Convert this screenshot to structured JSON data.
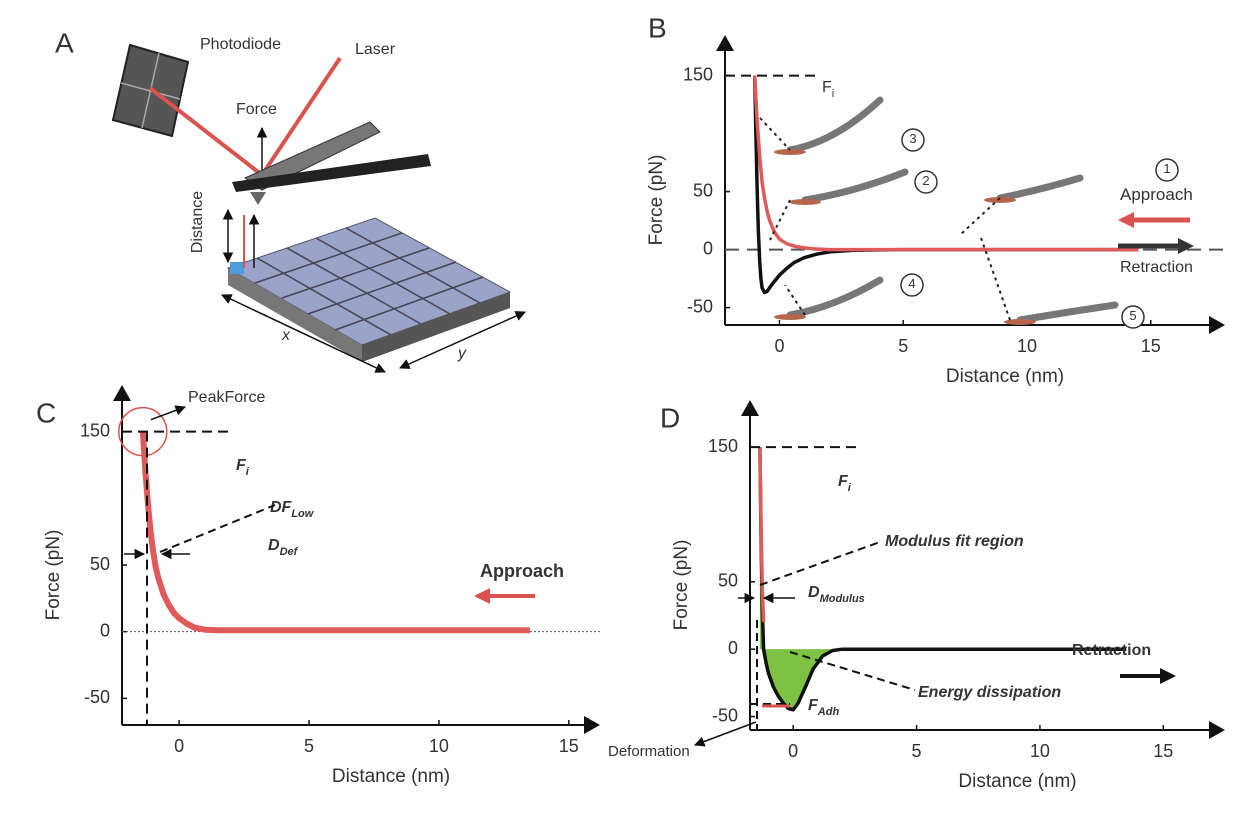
{
  "panel_labels": [
    "A",
    "B",
    "C",
    "D"
  ],
  "diagram": {
    "labels": [
      "Photodiode",
      "Laser",
      "Force",
      "Distance",
      "x",
      "y"
    ]
  },
  "chart_data": [
    {
      "type": "line",
      "xlabel": "Distance (nm)",
      "ylabel": "Force (pN)",
      "xlim": [
        -2.2,
        18
      ],
      "ylim": [
        -65,
        185
      ],
      "xticks": [
        0,
        5,
        10,
        15
      ],
      "yticks": [
        -50,
        0,
        50,
        150
      ],
      "zero_line": true,
      "series": [
        {
          "color": "#111111",
          "x": [
            -1,
            -0.95,
            -0.9,
            -0.85,
            -0.8,
            -0.75,
            -0.7,
            -0.6,
            -0.5,
            -0.3,
            0,
            0.3,
            0.6,
            1,
            1.5,
            2,
            3,
            5,
            8,
            11,
            14.5
          ],
          "values": [
            150,
            100,
            50,
            15,
            -10,
            -25,
            -33,
            -37,
            -36,
            -30,
            -22,
            -16,
            -11,
            -7,
            -4,
            -2,
            -0.5,
            0,
            0,
            0,
            0
          ]
        },
        {
          "color": "#e05a5a",
          "x": [
            -1,
            -0.9,
            -0.8,
            -0.7,
            -0.6,
            -0.5,
            -0.4,
            -0.2,
            0,
            0.3,
            0.6,
            1,
            1.5,
            2,
            3,
            5,
            8,
            11,
            14.5
          ],
          "values": [
            150,
            110,
            80,
            58,
            44,
            33,
            25,
            15,
            9,
            5,
            3,
            1.5,
            0.5,
            0,
            0,
            0,
            0,
            0,
            0
          ]
        }
      ],
      "annotations": [
        {
          "text": "F",
          "sub": "i"
        },
        {
          "text": "Approach"
        },
        {
          "text": "Retraction"
        },
        {
          "text": "3"
        },
        {
          "text": "2"
        },
        {
          "text": "1"
        },
        {
          "text": "4"
        },
        {
          "text": "5"
        }
      ]
    },
    {
      "type": "line",
      "xlabel": "Distance (nm)",
      "ylabel": "Force (pN)",
      "xlim": [
        -2.2,
        16.2
      ],
      "ylim": [
        -70,
        185
      ],
      "xticks": [
        0,
        5,
        10,
        15
      ],
      "yticks": [
        -50,
        0,
        50,
        150
      ],
      "zero_line": true,
      "series": [
        {
          "color": "#e05a5a",
          "width": 6,
          "x": [
            -1.4,
            -1.3,
            -1.2,
            -1.1,
            -1,
            -0.9,
            -0.8,
            -0.6,
            -0.4,
            -0.2,
            0,
            0.3,
            0.6,
            1,
            1.5,
            3,
            6,
            9,
            13.5
          ],
          "values": [
            150,
            120,
            95,
            75,
            60,
            48,
            40,
            28,
            20,
            14,
            10,
            6,
            3,
            1.5,
            1,
            1,
            1,
            1,
            1
          ]
        }
      ],
      "annotations": [
        {
          "text": "PeakForce"
        },
        {
          "text": "F",
          "sub": "i"
        },
        {
          "text": "DF",
          "sub": "Low"
        },
        {
          "text": "D",
          "sub": "Def"
        },
        {
          "text": "Approach"
        }
      ]
    },
    {
      "type": "line",
      "xlabel": "Distance (nm)",
      "ylabel": "Force (pN)",
      "xlim": [
        -1.75,
        17.5
      ],
      "ylim": [
        -60,
        185
      ],
      "xticks": [
        0,
        5,
        10,
        15
      ],
      "yticks": [
        -50,
        0,
        50,
        150
      ],
      "zero_line": false,
      "series": [
        {
          "color": "#111111",
          "fill": "#7dc242",
          "x": [
            -1.35,
            -1.3,
            -1.25,
            -1.2,
            -1.1,
            -1,
            -0.8,
            -0.6,
            -0.4,
            -0.2,
            0,
            0.2,
            0.5,
            0.8,
            1.2,
            1.6,
            2,
            5,
            9,
            13.5
          ],
          "values": [
            150,
            80,
            30,
            0,
            -10,
            -18,
            -28,
            -35,
            -40,
            -44,
            -45,
            -40,
            -28,
            -15,
            -5,
            -1,
            0,
            0,
            0,
            0
          ]
        },
        {
          "color": "#e05a5a",
          "x": [
            -1.35,
            -1.3,
            -1.25,
            -1.2
          ],
          "values": [
            150,
            90,
            45,
            20
          ]
        }
      ],
      "annotations": [
        {
          "text": "F",
          "sub": "i"
        },
        {
          "text": "Modulus fit region"
        },
        {
          "text": "D",
          "sub": "Modulus"
        },
        {
          "text": "Retraction"
        },
        {
          "text": "Energy dissipation"
        },
        {
          "text": "F",
          "sub": "Adh"
        },
        {
          "text": "Deformation"
        }
      ]
    }
  ]
}
